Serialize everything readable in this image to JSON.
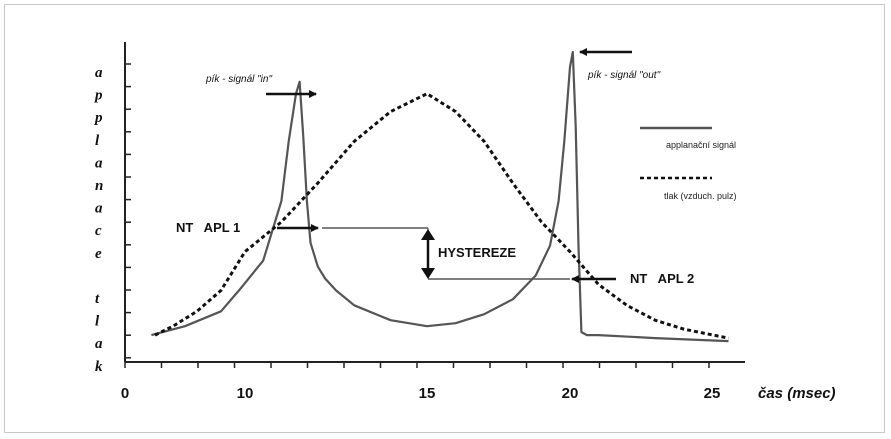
{
  "chart_data": {
    "type": "line",
    "xlabel": "čas (msec)",
    "ylabel_letters": [
      "a",
      "p",
      "p",
      "l",
      "a",
      "n",
      "a",
      "c",
      "e",
      "",
      "t",
      "l",
      "a",
      "k"
    ],
    "x_ticks": [
      "0",
      "10",
      "15",
      "20",
      "25"
    ],
    "xlim": [
      0,
      26
    ],
    "series": [
      {
        "name": "applanační signál",
        "style": "solid",
        "color": "#555555",
        "x": [
          2.2,
          5,
          8,
          9.5,
          10.5,
          11,
          11.2,
          11.4,
          11.5,
          11.6,
          11.7,
          11.8,
          12.0,
          12.2,
          12.5,
          13,
          14,
          15,
          16,
          17,
          18,
          18.8,
          19.3,
          19.6,
          19.8,
          20.0,
          20.1,
          20.2,
          20.3,
          20.4,
          20.6,
          21,
          23,
          25.5
        ],
        "values": [
          0.05,
          0.08,
          0.13,
          0.2,
          0.3,
          0.5,
          0.7,
          0.86,
          0.9,
          0.72,
          0.5,
          0.36,
          0.28,
          0.24,
          0.2,
          0.15,
          0.1,
          0.08,
          0.09,
          0.12,
          0.17,
          0.25,
          0.35,
          0.5,
          0.7,
          0.95,
          1.0,
          0.75,
          0.35,
          0.06,
          0.05,
          0.05,
          0.04,
          0.03
        ]
      },
      {
        "name": "tlak (vzduch. pulz)",
        "style": "dashed",
        "color": "#111111",
        "x": [
          2.5,
          4,
          6,
          8,
          10,
          11,
          12,
          13,
          14,
          15,
          16,
          17,
          18,
          19,
          20,
          21,
          22,
          23,
          24,
          25.5
        ],
        "values": [
          0.05,
          0.08,
          0.13,
          0.2,
          0.33,
          0.43,
          0.56,
          0.7,
          0.8,
          0.86,
          0.8,
          0.7,
          0.56,
          0.43,
          0.33,
          0.22,
          0.15,
          0.1,
          0.07,
          0.04
        ]
      }
    ],
    "annotations": {
      "peak_in": "pík - signál \"in\"",
      "peak_out": "pík - signál \"out\"",
      "apl1": "NT   APL 1",
      "apl2": "NT   APL 2",
      "hysteresis": "HYSTEREZE"
    },
    "legend": {
      "position": "right",
      "entries": [
        "applanační signál",
        "tlak (vzduch. pulz)"
      ]
    }
  }
}
